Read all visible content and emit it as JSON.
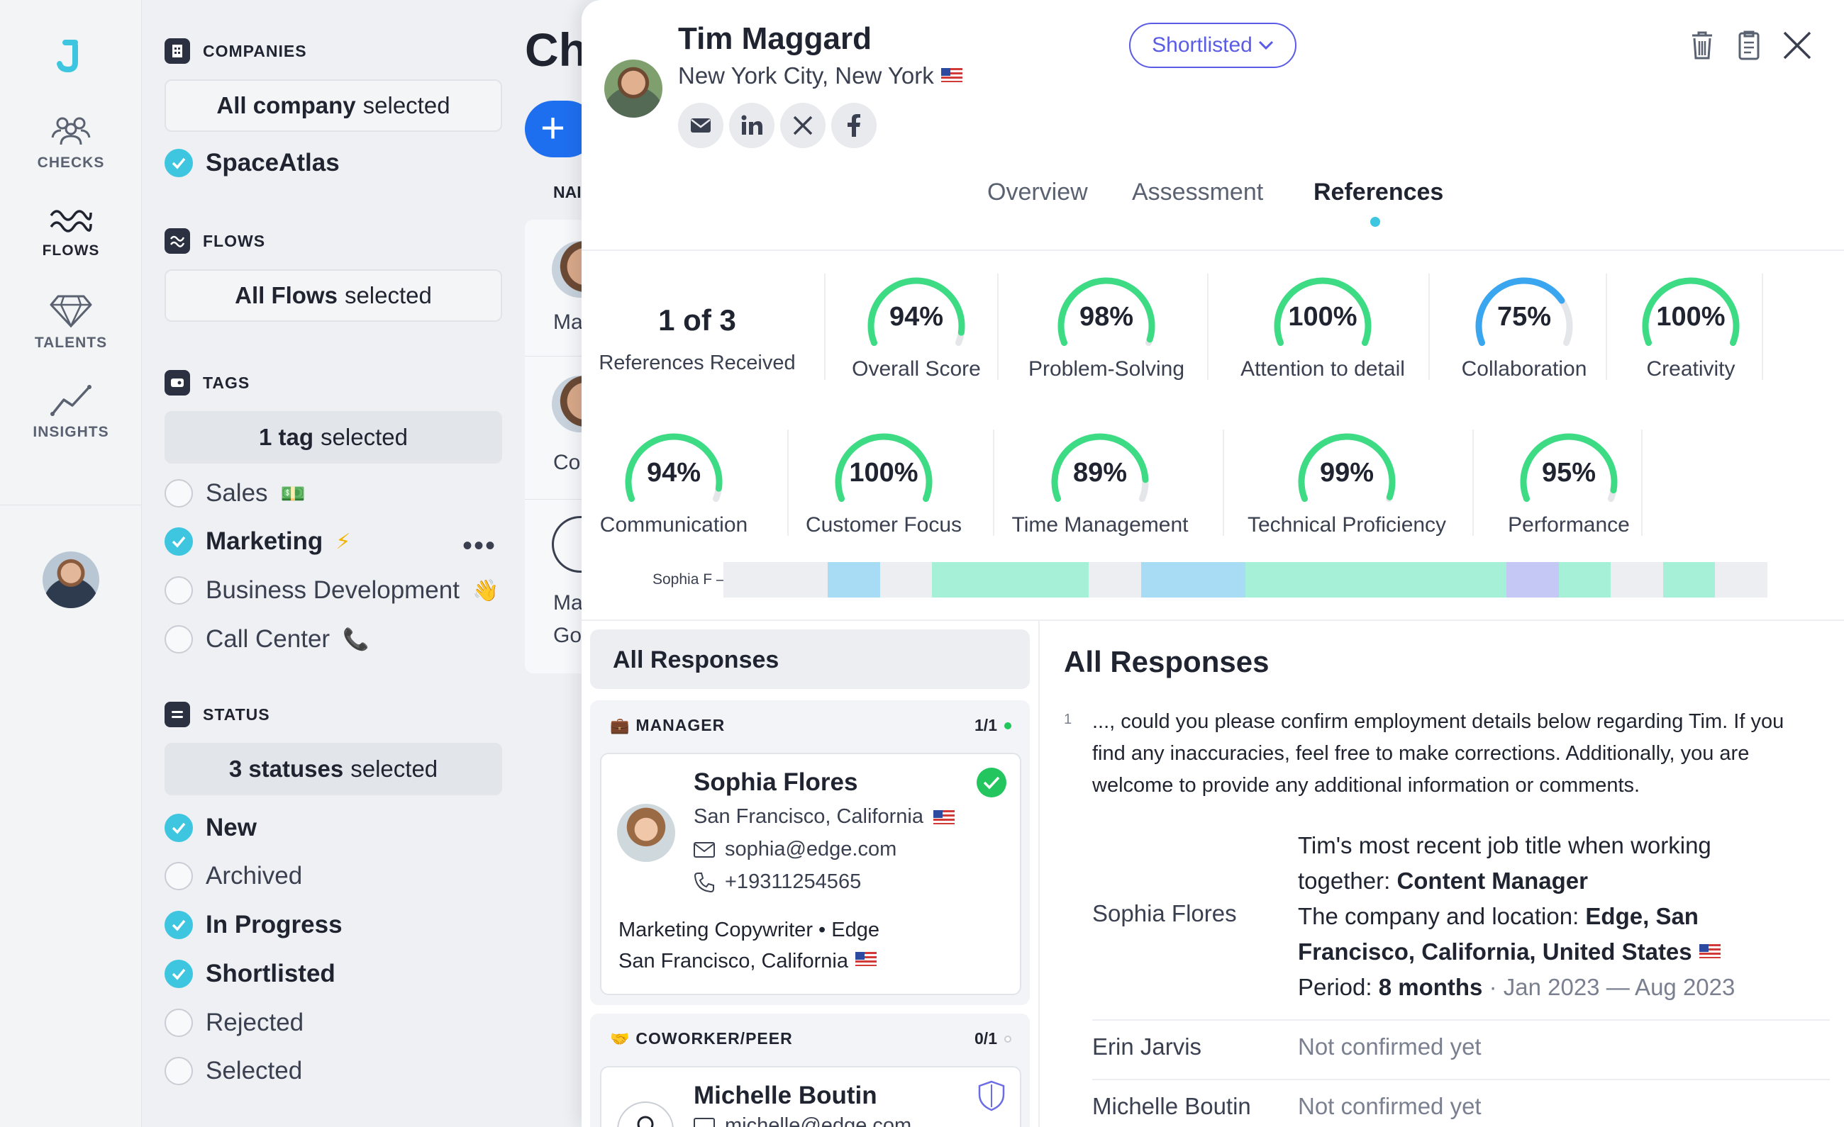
{
  "nav": {
    "items": [
      {
        "label": "CHECKS",
        "icon": "people-icon"
      },
      {
        "label": "FLOWS",
        "icon": "waves-icon"
      },
      {
        "label": "TALENTS",
        "icon": "diamond-icon"
      },
      {
        "label": "INSIGHTS",
        "icon": "chart-line-icon"
      }
    ]
  },
  "filters": {
    "companies": {
      "title": "COMPANIES",
      "selection_strong": "All company",
      "selection_rest": "selected",
      "items": [
        {
          "label": "SpaceAtlas",
          "checked": true
        }
      ]
    },
    "flows": {
      "title": "FLOWS",
      "selection_strong": "All Flows",
      "selection_rest": "selected"
    },
    "tags": {
      "title": "TAGS",
      "selection_strong": "1 tag",
      "selection_rest": "selected",
      "items": [
        {
          "label": "Sales",
          "emoji": "💵",
          "checked": false
        },
        {
          "label": "Marketing",
          "emoji": "⚡",
          "checked": true
        },
        {
          "label": "Business Development",
          "emoji": "👋",
          "checked": false
        },
        {
          "label": "Call Center",
          "emoji": "📞",
          "checked": false
        }
      ],
      "more": "•••"
    },
    "status": {
      "title": "STATUS",
      "selection_strong": "3 statuses",
      "selection_rest": "selected",
      "items": [
        {
          "label": "New",
          "checked": true
        },
        {
          "label": "Archived",
          "checked": false
        },
        {
          "label": "In Progress",
          "checked": true
        },
        {
          "label": "Shortlisted",
          "checked": true
        },
        {
          "label": "Rejected",
          "checked": false
        },
        {
          "label": "Selected",
          "checked": false
        }
      ]
    }
  },
  "background": {
    "title_fragment": "Ch",
    "add": "+",
    "column_fragment": "NAI",
    "rows": [
      {
        "line1": "Ma"
      },
      {
        "line1": "Co"
      },
      {
        "line1": "Ma",
        "line2": "Go"
      }
    ]
  },
  "candidate": {
    "name": "Tim Maggard",
    "location": "New York City, New York",
    "status": "Shortlisted",
    "socials": [
      "email-icon",
      "linkedin-icon",
      "x-icon",
      "facebook-icon"
    ]
  },
  "tabs": [
    {
      "label": "Overview",
      "active": false
    },
    {
      "label": "Assessment",
      "active": false
    },
    {
      "label": "References",
      "active": true
    }
  ],
  "summary": {
    "count": "1 of 3",
    "label": "References Received"
  },
  "scores": [
    {
      "value": "94%",
      "pct": 94,
      "label": "Overall Score",
      "color": "#3ddc84"
    },
    {
      "value": "98%",
      "pct": 98,
      "label": "Problem-Solving",
      "color": "#3ddc84"
    },
    {
      "value": "100%",
      "pct": 100,
      "label": "Attention to detail",
      "color": "#3ddc84"
    },
    {
      "value": "75%",
      "pct": 75,
      "label": "Collaboration",
      "color": "#3aa6f0"
    },
    {
      "value": "100%",
      "pct": 100,
      "label": "Creativity",
      "color": "#3ddc84"
    },
    {
      "value": "94%",
      "pct": 94,
      "label": "Communication",
      "color": "#3ddc84"
    },
    {
      "value": "100%",
      "pct": 100,
      "label": "Customer Focus",
      "color": "#3ddc84"
    },
    {
      "value": "89%",
      "pct": 89,
      "label": "Time Management",
      "color": "#3ddc84"
    },
    {
      "value": "99%",
      "pct": 99,
      "label": "Technical Proficiency",
      "color": "#3ddc84"
    },
    {
      "value": "95%",
      "pct": 95,
      "label": "Performance",
      "color": "#3ddc84"
    }
  ],
  "timeline": {
    "label": "Sophia F",
    "cells": [
      "#eceef1",
      "#eceef1",
      "#a8dcf5",
      "#eceef1",
      "#a6f0d8",
      "#a6f0d8",
      "#a6f0d8",
      "#eceef1",
      "#a8dcf5",
      "#a8dcf5",
      "#a6f0d8",
      "#a6f0d8",
      "#a6f0d8",
      "#a6f0d8",
      "#a6f0d8",
      "#c5c8f5",
      "#a6f0d8",
      "#eceef1",
      "#a6f0d8",
      "#eceef1"
    ]
  },
  "responses_panel": {
    "title": "All Responses",
    "groups": [
      {
        "title": "MANAGER",
        "emoji": "💼",
        "count": "1/1",
        "dot_color": "#22c55e",
        "card": {
          "name": "Sophia Flores",
          "location": "San Francisco, California",
          "email": "sophia@edge.com",
          "phone": "+19311254565",
          "job": "Marketing Copywriter • Edge",
          "job_location": "San Francisco, California",
          "status_icon": "check-circle-icon"
        }
      },
      {
        "title": "COWORKER/PEER",
        "emoji": "🤝",
        "count": "0/1",
        "dot_color": "#c9cdd4",
        "card": {
          "name": "Michelle Boutin",
          "email": "michelle@edge.com",
          "status_icon": "shield-icon"
        }
      }
    ]
  },
  "detail": {
    "title": "All Responses",
    "question_number": "1",
    "question": "..., could you please confirm employment details below regarding Tim. If you find any inaccuracies, feel free to make corrections. Additionally, you are welcome to provide any additional information or comments.",
    "responses": [
      {
        "name": "Sophia Flores",
        "title_prefix": "Tim's most recent job title when working together:",
        "title_value": "Content Manager",
        "company_prefix": "The company and location:",
        "company_value": "Edge, San Francisco, California, United States",
        "period_prefix": "Period:",
        "period_value": "8 months",
        "period_range": "· Jan 2023 — Aug 2023"
      },
      {
        "name": "Erin Jarvis",
        "status": "Not confirmed yet"
      },
      {
        "name": "Michelle Boutin",
        "status": "Not confirmed yet"
      }
    ]
  }
}
